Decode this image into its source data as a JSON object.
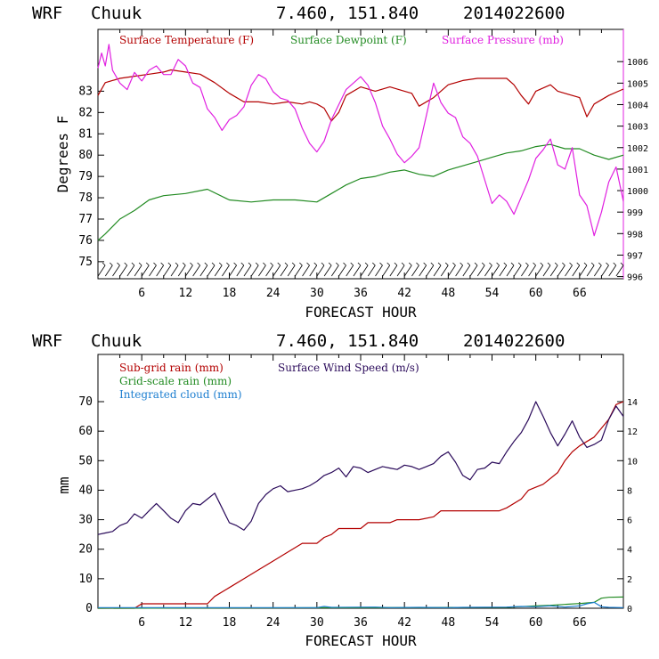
{
  "colors": {
    "temp": "#b30000",
    "dew": "#228b22",
    "pres": "#e020e0",
    "subrain": "#b30000",
    "gridrain": "#228b22",
    "cloud": "#1e7fd0",
    "wind": "#2a0a5a"
  },
  "chart_data": [
    {
      "type": "line",
      "header": {
        "model": "WRF",
        "station": "Chuuk",
        "coords": "7.460, 151.840",
        "init": "2014022600"
      },
      "xlabel": "FORECAST HOUR",
      "ylabel": "Degrees F",
      "xlim": [
        0,
        72
      ],
      "ylim": [
        74.2,
        85.9
      ],
      "y2lim": [
        995.9,
        1007.5
      ],
      "xticks": [
        "6",
        "12",
        "18",
        "24",
        "30",
        "36",
        "42",
        "48",
        "54",
        "60",
        "66"
      ],
      "yticks": [
        "75",
        "76",
        "77",
        "78",
        "79",
        "80",
        "81",
        "82",
        "83"
      ],
      "y2ticks": [
        "996",
        "997",
        "998",
        "999",
        "1000",
        "1001",
        "1002",
        "1003",
        "1004",
        "1005",
        "1006"
      ],
      "legend": [
        "Surface Temperature (F)",
        "Surface Dewpoint (F)",
        "Surface Pressure (mb)"
      ],
      "series": [
        {
          "name": "Surface Temperature (F)",
          "axis": "left",
          "color": "temp",
          "x": [
            0,
            1,
            3,
            5,
            7,
            9,
            10,
            12,
            14,
            16,
            18,
            20,
            22,
            24,
            26,
            28,
            29,
            30,
            31,
            32,
            33,
            34,
            36,
            38,
            40,
            42,
            43,
            44,
            46,
            48,
            50,
            52,
            54,
            56,
            57,
            58,
            59,
            60,
            62,
            63,
            64,
            66,
            67,
            68,
            70,
            72
          ],
          "y": [
            82.8,
            83.4,
            83.6,
            83.7,
            83.8,
            83.9,
            84.0,
            83.9,
            83.8,
            83.4,
            82.9,
            82.5,
            82.5,
            82.4,
            82.5,
            82.4,
            82.5,
            82.4,
            82.2,
            81.6,
            82.0,
            82.8,
            83.2,
            83.0,
            83.2,
            83.0,
            82.9,
            82.3,
            82.7,
            83.3,
            83.5,
            83.6,
            83.6,
            83.6,
            83.3,
            82.8,
            82.4,
            83.0,
            83.3,
            83.0,
            82.9,
            82.7,
            81.8,
            82.4,
            82.8,
            83.1
          ]
        },
        {
          "name": "Surface Dewpoint (F)",
          "axis": "left",
          "color": "dew",
          "x": [
            0,
            1,
            3,
            5,
            7,
            9,
            12,
            15,
            18,
            21,
            24,
            27,
            30,
            32,
            34,
            36,
            38,
            40,
            42,
            44,
            46,
            48,
            50,
            52,
            54,
            56,
            58,
            60,
            62,
            64,
            66,
            68,
            70,
            72
          ],
          "y": [
            76.0,
            76.3,
            77.0,
            77.4,
            77.9,
            78.1,
            78.2,
            78.4,
            77.9,
            77.8,
            77.9,
            77.9,
            77.8,
            78.2,
            78.6,
            78.9,
            79.0,
            79.2,
            79.3,
            79.1,
            79.0,
            79.3,
            79.5,
            79.7,
            79.9,
            80.1,
            80.2,
            80.4,
            80.5,
            80.3,
            80.3,
            80.0,
            79.8,
            80.0
          ]
        },
        {
          "name": "Surface Pressure (mb)",
          "axis": "right",
          "color": "pres",
          "x": [
            0,
            0.5,
            1,
            1.5,
            2,
            3,
            4,
            5,
            6,
            7,
            8,
            9,
            10,
            11,
            12,
            13,
            14,
            15,
            16,
            17,
            18,
            19,
            20,
            21,
            22,
            23,
            24,
            25,
            26,
            27,
            28,
            29,
            30,
            31,
            32,
            33,
            34,
            35,
            36,
            37,
            38,
            39,
            40,
            41,
            42,
            43,
            44,
            45,
            46,
            47,
            48,
            49,
            50,
            51,
            52,
            53,
            54,
            55,
            56,
            57,
            58,
            59,
            60,
            61,
            62,
            63,
            64,
            65,
            66,
            67,
            68,
            69,
            70,
            71,
            72
          ],
          "y": [
            1005.7,
            1006.4,
            1005.8,
            1006.8,
            1005.6,
            1005.0,
            1004.7,
            1005.5,
            1005.1,
            1005.6,
            1005.8,
            1005.4,
            1005.4,
            1006.1,
            1005.8,
            1005.0,
            1004.8,
            1003.8,
            1003.4,
            1002.8,
            1003.3,
            1003.5,
            1003.9,
            1004.9,
            1005.4,
            1005.2,
            1004.6,
            1004.3,
            1004.2,
            1003.8,
            1002.9,
            1002.2,
            1001.8,
            1002.3,
            1003.3,
            1004.0,
            1004.7,
            1005.0,
            1005.3,
            1004.9,
            1004.1,
            1003.0,
            1002.4,
            1001.7,
            1001.3,
            1001.6,
            1002.0,
            1003.5,
            1005.0,
            1004.1,
            1003.6,
            1003.4,
            1002.5,
            1002.2,
            1001.6,
            1000.5,
            999.4,
            999.8,
            999.5,
            998.9,
            999.7,
            1000.5,
            1001.5,
            1001.9,
            1002.4,
            1001.2,
            1001.0,
            1002.0,
            999.8,
            999.3,
            997.9,
            999.0,
            1000.4,
            1001.1,
            999.5
          ]
        }
      ]
    },
    {
      "type": "line",
      "header": {
        "model": "WRF",
        "station": "Chuuk",
        "coords": "7.460, 151.840",
        "init": "2014022600"
      },
      "xlabel": "FORECAST HOUR",
      "ylabel": "mm",
      "xlim": [
        0,
        72
      ],
      "ylim": [
        0,
        86
      ],
      "y2lim": [
        0,
        17.2
      ],
      "xticks": [
        "6",
        "12",
        "18",
        "24",
        "30",
        "36",
        "42",
        "48",
        "54",
        "60",
        "66"
      ],
      "yticks": [
        "0",
        "10",
        "20",
        "30",
        "40",
        "50",
        "60",
        "70"
      ],
      "y2ticks": [
        "0",
        "2",
        "4",
        "6",
        "8",
        "10",
        "12",
        "14"
      ],
      "legend": [
        "Sub-grid rain (mm)",
        "Grid-scale rain (mm)",
        "Integrated cloud (mm)",
        "Surface Wind Speed (m/s)"
      ],
      "series": [
        {
          "name": "Sub-grid rain (mm)",
          "axis": "left",
          "color": "subrain",
          "x": [
            0,
            5,
            6,
            15,
            16,
            18,
            20,
            22,
            24,
            26,
            28,
            30,
            31,
            32,
            33,
            34,
            36,
            37,
            38,
            40,
            41,
            44,
            46,
            47,
            48,
            52,
            55,
            56,
            58,
            59,
            60,
            61,
            63,
            64,
            65,
            66,
            68,
            70,
            71,
            72
          ],
          "y": [
            0,
            0,
            1.5,
            1.5,
            4,
            7,
            10,
            13,
            16,
            19,
            22,
            22,
            24,
            25,
            27,
            27,
            27,
            29,
            29,
            29,
            30,
            30,
            31,
            33,
            33,
            33,
            33,
            34,
            37,
            40,
            41,
            42,
            46,
            50,
            53,
            55,
            58,
            64,
            69,
            70
          ]
        },
        {
          "name": "Grid-scale rain (mm)",
          "axis": "left",
          "color": "gridrain",
          "x": [
            0,
            56,
            60,
            62,
            64,
            66,
            68,
            69,
            70,
            72
          ],
          "y": [
            0,
            0.3,
            0.8,
            1.0,
            1.3,
            1.6,
            2.0,
            3.4,
            3.7,
            3.8
          ]
        },
        {
          "name": "Integrated cloud (mm)",
          "axis": "left",
          "color": "cloud",
          "x": [
            0,
            30,
            31,
            32,
            38,
            40,
            44,
            48,
            50,
            56,
            58,
            60,
            62,
            64,
            66,
            67,
            68,
            69,
            70,
            72
          ],
          "y": [
            0.2,
            0.2,
            0.6,
            0.3,
            0.4,
            0.2,
            0.3,
            0.2,
            0.3,
            0.4,
            0.6,
            0.5,
            0.8,
            0.4,
            0.8,
            1.5,
            2.0,
            0.5,
            0.3,
            0.2
          ]
        },
        {
          "name": "Surface Wind Speed (m/s)",
          "axis": "right",
          "color": "wind",
          "x": [
            0,
            1,
            2,
            3,
            4,
            5,
            6,
            7,
            8,
            9,
            10,
            11,
            12,
            13,
            14,
            15,
            16,
            17,
            18,
            19,
            20,
            21,
            22,
            23,
            24,
            25,
            26,
            27,
            28,
            29,
            30,
            31,
            32,
            33,
            34,
            35,
            36,
            37,
            38,
            39,
            40,
            41,
            42,
            43,
            44,
            45,
            46,
            47,
            48,
            49,
            50,
            51,
            52,
            53,
            54,
            55,
            56,
            57,
            58,
            59,
            60,
            61,
            62,
            63,
            64,
            65,
            66,
            67,
            68,
            69,
            70,
            71,
            72
          ],
          "y": [
            5.0,
            5.1,
            5.2,
            5.6,
            5.8,
            6.4,
            6.1,
            6.6,
            7.1,
            6.6,
            6.1,
            5.8,
            6.6,
            7.1,
            7.0,
            7.4,
            7.8,
            6.8,
            5.8,
            5.6,
            5.3,
            5.9,
            7.1,
            7.7,
            8.1,
            8.3,
            7.9,
            8.0,
            8.1,
            8.3,
            8.6,
            9.0,
            9.2,
            9.5,
            8.9,
            9.6,
            9.5,
            9.2,
            9.4,
            9.6,
            9.5,
            9.4,
            9.7,
            9.6,
            9.4,
            9.6,
            9.8,
            10.3,
            10.6,
            9.9,
            9.0,
            8.7,
            9.4,
            9.5,
            9.9,
            9.8,
            10.6,
            11.3,
            11.9,
            12.8,
            14.0,
            13.0,
            11.9,
            11.0,
            11.8,
            12.7,
            11.6,
            10.9,
            11.1,
            11.4,
            12.8,
            13.7,
            13.0
          ]
        }
      ]
    }
  ]
}
